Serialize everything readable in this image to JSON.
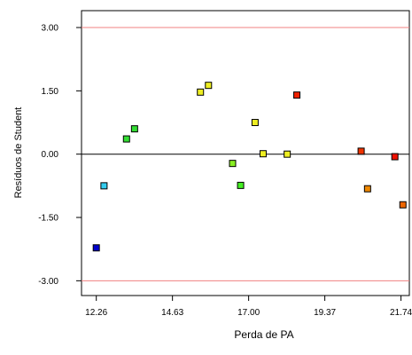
{
  "chart_data": {
    "type": "scatter",
    "title": "",
    "xlabel": "Perda de PA",
    "ylabel": "Resíduos de Student",
    "xlim": [
      11.8,
      22.0
    ],
    "ylim": [
      -3.35,
      3.4
    ],
    "x_ticks": [
      12.26,
      14.63,
      17.0,
      19.37,
      21.74
    ],
    "x_tick_labels": [
      "12.26",
      "14.63",
      "17.00",
      "19.37",
      "21.74"
    ],
    "y_ticks": [
      3.0,
      1.5,
      0.0,
      -1.5,
      -3.0
    ],
    "y_tick_labels": [
      "3.00",
      "1.50",
      "0.00",
      "-1.50",
      "-3.00"
    ],
    "reference_lines": [
      {
        "y": 3.0,
        "color": "#f08080"
      },
      {
        "y": -3.0,
        "color": "#f08080"
      },
      {
        "y": 0.0,
        "color": "#000000"
      }
    ],
    "grid": false,
    "points": [
      {
        "x": 12.26,
        "y": -2.22,
        "color": "#0000cc"
      },
      {
        "x": 12.5,
        "y": -0.75,
        "color": "#33ccee"
      },
      {
        "x": 13.2,
        "y": 0.36,
        "color": "#33dd33"
      },
      {
        "x": 13.45,
        "y": 0.6,
        "color": "#33dd33"
      },
      {
        "x": 15.5,
        "y": 1.47,
        "color": "#eeee22"
      },
      {
        "x": 15.75,
        "y": 1.63,
        "color": "#eeee22"
      },
      {
        "x": 16.5,
        "y": -0.22,
        "color": "#88ee22"
      },
      {
        "x": 16.75,
        "y": -0.74,
        "color": "#44ee22"
      },
      {
        "x": 17.2,
        "y": 0.75,
        "color": "#eeee22"
      },
      {
        "x": 17.45,
        "y": 0.01,
        "color": "#eeee22"
      },
      {
        "x": 18.2,
        "y": 0.0,
        "color": "#eeee22"
      },
      {
        "x": 18.5,
        "y": 1.4,
        "color": "#ee2200"
      },
      {
        "x": 20.5,
        "y": 0.07,
        "color": "#ee3300"
      },
      {
        "x": 20.7,
        "y": -0.82,
        "color": "#ee8800"
      },
      {
        "x": 21.55,
        "y": -0.06,
        "color": "#ee1100"
      },
      {
        "x": 21.8,
        "y": -1.2,
        "color": "#ee6600"
      }
    ]
  }
}
